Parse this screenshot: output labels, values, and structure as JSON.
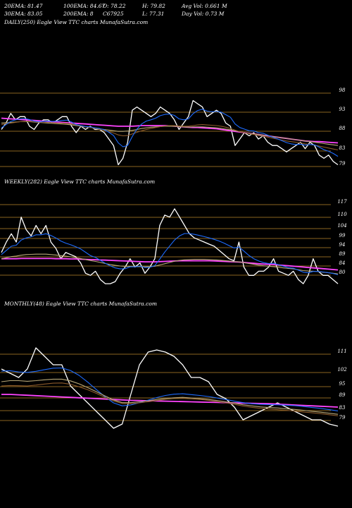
{
  "header": {
    "ema20": "20EMA: 81.47",
    "ema100": "100EMA: 84.67",
    "open": "O: 78.22",
    "high": "H: 79.82",
    "avg_vol": "Avg Vol: 0.661 M",
    "ema30": "30EMA: 83.05",
    "ema200": "200EMA: 8",
    "change": "C67925",
    "low": "L: 77.31",
    "day_vol": "Day Vol: 0.73 M"
  },
  "colors": {
    "background": "#000000",
    "price_line": "#ffffff",
    "grid_line": "#b8862b",
    "ema_blue": "#1e6cff",
    "ema_magenta": "#ff44ff",
    "ema_brown": "#8b5a2b",
    "ema_olive": "#b8a878",
    "ema_light": "#d8d8d8"
  },
  "chart_data": [
    {
      "type": "line",
      "title": "DAILY(250) Eagle  View  TTC charts MunafaSutra.com",
      "y_ticks": [
        "98",
        "93",
        "88",
        "83",
        "79"
      ],
      "series": [
        {
          "color": "#ffffff",
          "values": [
            89,
            91,
            94,
            92,
            93,
            93,
            90,
            89,
            91,
            92,
            92,
            91,
            92,
            93,
            93,
            90,
            88,
            90,
            89,
            90,
            89,
            89,
            88,
            86,
            84,
            78,
            80,
            85,
            95,
            96,
            95,
            94,
            93,
            94,
            96,
            95,
            94,
            92,
            89,
            91,
            93,
            98,
            97,
            96,
            93,
            94,
            95,
            94,
            91,
            90,
            84,
            86,
            88,
            87,
            88,
            86,
            87,
            85,
            84,
            84,
            83,
            82,
            83,
            84,
            85,
            83,
            85,
            84,
            81,
            80,
            81,
            79,
            78
          ]
        },
        {
          "color": "#ff44ff",
          "values": [
            92.5,
            92.4,
            92.3,
            92.2,
            92.1,
            92,
            91.9,
            91.8,
            91.7,
            91.6,
            91.5,
            91.4,
            91.3,
            91.2,
            91.1,
            91,
            90.9,
            90.8,
            90.7,
            90.6,
            90.5,
            90.4,
            90.3,
            90.2,
            90.1,
            90,
            90,
            90,
            90,
            90.1,
            90.2,
            90.2,
            90.2,
            90.2,
            90.2,
            90.2,
            90.1,
            90,
            89.9,
            89.8,
            89.7,
            89.6,
            89.6,
            89.5,
            89.4,
            89.3,
            89.2,
            89,
            88.8,
            88.6,
            88.4,
            88.2,
            88,
            87.8,
            87.6,
            87.4,
            87.2,
            87,
            86.8,
            86.6,
            86.4,
            86.2,
            86,
            85.8,
            85.6,
            85.4,
            85.3,
            85.2,
            85.2,
            85.1,
            85,
            84.9,
            84.8
          ]
        },
        {
          "color": "#b8a878",
          "values": [
            91,
            91.1,
            91.2,
            91.3,
            91.4,
            91.4,
            91.4,
            91.3,
            91.2,
            91.1,
            91,
            90.9,
            90.8,
            90.7,
            90.6,
            90.4,
            90.2,
            90,
            89.8,
            89.6,
            89.4,
            89.2,
            89,
            88.8,
            88.6,
            88.4,
            88.4,
            88.5,
            88.7,
            89,
            89.3,
            89.5,
            89.7,
            89.8,
            89.9,
            90,
            90,
            90,
            89.9,
            89.8,
            89.7,
            89.8,
            89.8,
            89.8,
            89.7,
            89.6,
            89.5,
            89.3,
            89.1,
            88.9,
            88.6,
            88.3,
            88,
            87.8,
            87.6,
            87.4,
            87.2,
            87,
            86.8,
            86.6,
            86.4,
            86.2,
            86,
            85.8,
            85.6,
            85.4,
            85.2,
            85,
            84.8,
            84.6,
            84.4,
            84.2,
            84
          ]
        },
        {
          "color": "#8b5a2b",
          "values": [
            90.5,
            90.8,
            91,
            91.2,
            91.4,
            91.5,
            91.5,
            91.4,
            91.3,
            91.2,
            91.2,
            91.1,
            91,
            91,
            90.9,
            90.7,
            90.4,
            90.1,
            89.8,
            89.6,
            89.3,
            89,
            88.7,
            88.3,
            87.9,
            87.3,
            87,
            87.1,
            87.6,
            88.1,
            88.6,
            89,
            89.3,
            89.6,
            89.9,
            90.1,
            90.2,
            90.2,
            90.1,
            90,
            90,
            90.2,
            90.4,
            90.5,
            90.4,
            90.3,
            90.2,
            90,
            89.7,
            89.3,
            88.8,
            88.3,
            88,
            87.7,
            87.4,
            87.1,
            86.9,
            86.6,
            86.3,
            86,
            85.7,
            85.4,
            85.2,
            85,
            84.8,
            84.5,
            84.3,
            84.1,
            83.8,
            83.5,
            83.2,
            82.9,
            82.6
          ]
        },
        {
          "color": "#1e6cff",
          "values": [
            89.5,
            90.5,
            91.5,
            92,
            92.3,
            92.4,
            92.1,
            91.6,
            91.4,
            91.5,
            91.6,
            91.5,
            91.6,
            91.8,
            91.9,
            91.3,
            90.5,
            90.2,
            89.9,
            89.8,
            89.5,
            89.3,
            88.9,
            88.1,
            87.1,
            84.8,
            83.6,
            84,
            86.8,
            89.1,
            90.7,
            91.6,
            92,
            92.5,
            93.3,
            93.7,
            93.8,
            93.4,
            92.3,
            92,
            92.3,
            93.9,
            94.9,
            95.3,
            94.7,
            94.5,
            94.6,
            94.4,
            93.6,
            92.8,
            90.7,
            89.6,
            89.1,
            88.6,
            88.5,
            88,
            87.8,
            87.2,
            86.6,
            86.1,
            85.5,
            84.9,
            84.5,
            84.3,
            84.4,
            84.1,
            84.3,
            84.2,
            83.5,
            82.7,
            82.2,
            81.5,
            80.6
          ]
        }
      ]
    },
    {
      "type": "line",
      "title": "WEEKLY(282) Eagle  View  TTC charts MunafaSutra.com",
      "y_ticks": [
        "117",
        "110",
        "104",
        "99",
        "94",
        "89",
        "84",
        "80"
      ],
      "series": [
        {
          "color": "#ffffff",
          "values": [
            95,
            100,
            104,
            100,
            112,
            106,
            103,
            108,
            104,
            108,
            100,
            97,
            92,
            95,
            94,
            93,
            90,
            85,
            84,
            86,
            82,
            80,
            80,
            81,
            85,
            88,
            92,
            88,
            90,
            85,
            88,
            92,
            108,
            113,
            112,
            116,
            112,
            108,
            104,
            102,
            101,
            100,
            99,
            98,
            96,
            94,
            92,
            91,
            100,
            88,
            84,
            84,
            86,
            86,
            88,
            92,
            86,
            85,
            84,
            86,
            82,
            80,
            84,
            92,
            86,
            84,
            84,
            82,
            80
          ]
        },
        {
          "color": "#ff44ff",
          "values": [
            92,
            92,
            92,
            92,
            92.1,
            92.1,
            92.1,
            92.1,
            92.1,
            92.1,
            92.1,
            92,
            92,
            92,
            91.9,
            91.9,
            91.8,
            91.7,
            91.6,
            91.5,
            91.4,
            91.3,
            91.2,
            91.1,
            91,
            90.9,
            90.8,
            90.7,
            90.6,
            90.5,
            90.5,
            90.5,
            90.6,
            90.7,
            90.8,
            90.9,
            91,
            91,
            91,
            91,
            91,
            91,
            91,
            90.9,
            90.8,
            90.7,
            90.6,
            90.5,
            90.4,
            90.2,
            90,
            89.8,
            89.6,
            89.4,
            89.3,
            89.2,
            89,
            88.8,
            88.6,
            88.4,
            88.2,
            88,
            87.8,
            87.6,
            87.4,
            87.2,
            87,
            86.8,
            86.6
          ]
        },
        {
          "color": "#b8a878",
          "values": [
            92,
            92.5,
            93,
            93.3,
            93.7,
            94,
            94.1,
            94.2,
            94.2,
            94.2,
            94,
            93.8,
            93.5,
            93.2,
            92.9,
            92.5,
            92.1,
            91.6,
            91.1,
            90.7,
            90.2,
            89.7,
            89.2,
            88.8,
            88.5,
            88.3,
            88.3,
            88.2,
            88.2,
            88.1,
            88.2,
            88.4,
            89,
            89.6,
            90.2,
            90.8,
            91.2,
            91.5,
            91.6,
            91.7,
            91.7,
            91.7,
            91.6,
            91.5,
            91.3,
            91.1,
            90.9,
            90.6,
            90.5,
            90.1,
            89.7,
            89.3,
            88.9,
            88.6,
            88.4,
            88.2,
            87.9,
            87.6,
            87.3,
            87.1,
            86.7,
            86.3,
            86.1,
            86,
            85.8,
            85.5,
            85.3,
            85,
            84.7
          ]
        },
        {
          "color": "#1e6cff",
          "values": [
            94,
            96,
            98,
            98.5,
            101,
            102,
            102.5,
            103.5,
            103.5,
            104,
            103.2,
            102,
            100.5,
            99.5,
            98.7,
            97.8,
            96.7,
            95.1,
            93.5,
            92.6,
            91.2,
            89.8,
            88.6,
            87.6,
            87.1,
            87.2,
            88.1,
            88.1,
            88.5,
            87.8,
            87.9,
            88.7,
            91.8,
            95.2,
            98.1,
            101,
            103,
            104.1,
            104.1,
            103.7,
            103.2,
            102.6,
            102,
            101.3,
            100.5,
            99.5,
            98.3,
            97.2,
            97.6,
            95.7,
            93.6,
            92,
            90.9,
            90.1,
            89.7,
            89.8,
            89.1,
            88.4,
            87.7,
            87.4,
            86.5,
            85.5,
            85.2,
            85.9,
            85.9,
            85.6,
            85.3,
            84.9,
            84.3
          ]
        }
      ]
    },
    {
      "type": "line",
      "title": "MONTHLY(48) Eagle  View  TTC charts MunafaSutra.com",
      "y_ticks": [
        "111",
        "102",
        "95",
        "89",
        "83",
        "79"
      ],
      "series": [
        {
          "color": "#ffffff",
          "values": [
            104,
            102,
            100,
            104,
            114,
            110,
            106,
            106,
            96,
            92,
            88,
            84,
            80,
            76,
            78,
            92,
            106,
            112,
            113,
            112,
            110,
            106,
            100,
            100,
            98,
            92,
            90,
            86,
            80,
            82,
            84,
            86,
            88,
            86,
            84,
            82,
            80,
            80,
            78,
            77
          ]
        },
        {
          "color": "#ff44ff",
          "values": [
            92,
            92,
            91.8,
            91.6,
            91.4,
            91.2,
            91,
            90.8,
            90.6,
            90.4,
            90.2,
            90,
            89.8,
            89.6,
            89.4,
            89.2,
            89.1,
            89,
            88.9,
            88.8,
            88.7,
            88.6,
            88.5,
            88.4,
            88.3,
            88.2,
            88.1,
            88,
            87.9,
            87.8,
            87.7,
            87.6,
            87.4,
            87.2,
            87,
            86.8,
            86.6,
            86.4,
            86.2,
            86
          ]
        },
        {
          "color": "#1e6cff",
          "values": [
            103,
            103.2,
            102.6,
            102.4,
            102.9,
            103.7,
            104.4,
            104.5,
            103.3,
            101,
            97.8,
            94.3,
            90.9,
            88,
            86.6,
            87,
            88.1,
            89.3,
            90.5,
            91.5,
            92.1,
            92.3,
            91.9,
            91.5,
            91,
            90.3,
            89.6,
            88.8,
            88.1,
            87.6,
            87.3,
            87.2,
            87.1,
            86.9,
            86.7,
            86.3,
            85.8,
            85.4,
            84.8,
            84.2
          ]
        },
        {
          "color": "#b8a878",
          "values": [
            98,
            98.5,
            98.5,
            98.2,
            98.5,
            98.9,
            99.2,
            99.2,
            98.4,
            97,
            95.2,
            93.3,
            91.3,
            89.4,
            88.1,
            88.1,
            88.5,
            89,
            89.6,
            90.1,
            90.4,
            90.6,
            90.3,
            90,
            89.6,
            89.1,
            88.5,
            87.9,
            87.1,
            86.6,
            86.1,
            85.8,
            85.6,
            85.2,
            84.9,
            84.5,
            84,
            83.6,
            83.1,
            82.6
          ]
        },
        {
          "color": "#8b5a2b",
          "values": [
            96,
            96.2,
            96.1,
            96,
            96.4,
            96.9,
            97.3,
            97.4,
            96.8,
            95.6,
            94.2,
            92.5,
            90.6,
            88.9,
            87.7,
            87.6,
            88,
            88.5,
            89.1,
            89.6,
            90,
            90.1,
            89.9,
            89.6,
            89.2,
            88.6,
            88,
            87.3,
            86.5,
            85.9,
            85.4,
            85.1,
            84.8,
            84.5,
            84.1,
            83.7,
            83.3,
            82.9,
            82.4,
            81.9
          ]
        }
      ]
    }
  ]
}
